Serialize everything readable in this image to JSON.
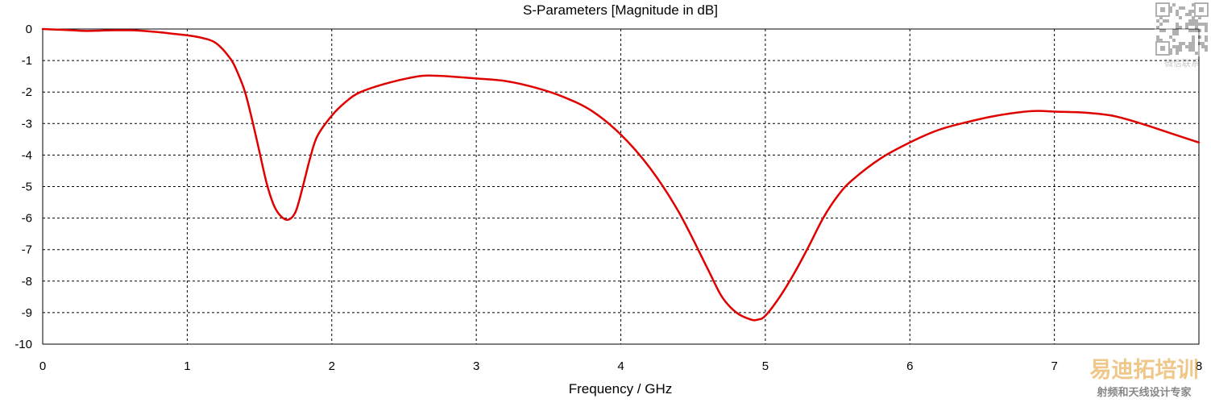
{
  "chart_data": {
    "type": "line",
    "title": "S-Parameters [Magnitude in dB]",
    "xlabel": "Frequency / GHz",
    "ylabel": "",
    "xlim": [
      0,
      8
    ],
    "ylim": [
      -10,
      0
    ],
    "x_ticks": [
      0,
      1,
      2,
      3,
      4,
      5,
      6,
      7,
      8
    ],
    "y_ticks": [
      0,
      -1,
      -2,
      -3,
      -4,
      -5,
      -6,
      -7,
      -8,
      -9,
      -10
    ],
    "grid": true,
    "legend": "none",
    "series": [
      {
        "color": "#e00000",
        "x": [
          0,
          0.1,
          0.2,
          0.3,
          0.4,
          0.5,
          0.6,
          0.7,
          0.8,
          0.9,
          1.0,
          1.1,
          1.2,
          1.3,
          1.35,
          1.4,
          1.45,
          1.5,
          1.55,
          1.6,
          1.65,
          1.7,
          1.75,
          1.8,
          1.85,
          1.9,
          2.0,
          2.1,
          2.2,
          2.4,
          2.6,
          2.7,
          2.8,
          3.0,
          3.2,
          3.4,
          3.6,
          3.8,
          4.0,
          4.2,
          4.4,
          4.6,
          4.7,
          4.8,
          4.9,
          4.95,
          5.0,
          5.1,
          5.2,
          5.3,
          5.4,
          5.5,
          5.6,
          5.8,
          6.0,
          6.2,
          6.4,
          6.6,
          6.8,
          6.9,
          7.0,
          7.2,
          7.4,
          7.6,
          7.8,
          8.0
        ],
        "y": [
          0,
          -0.02,
          -0.04,
          -0.06,
          -0.05,
          -0.04,
          -0.04,
          -0.06,
          -0.1,
          -0.15,
          -0.2,
          -0.28,
          -0.45,
          -0.95,
          -1.4,
          -2.0,
          -2.9,
          -3.9,
          -4.9,
          -5.6,
          -5.95,
          -6.05,
          -5.8,
          -5.0,
          -4.1,
          -3.4,
          -2.75,
          -2.3,
          -2.0,
          -1.7,
          -1.5,
          -1.48,
          -1.5,
          -1.57,
          -1.65,
          -1.85,
          -2.15,
          -2.6,
          -3.35,
          -4.4,
          -5.8,
          -7.6,
          -8.5,
          -9.0,
          -9.22,
          -9.22,
          -9.1,
          -8.5,
          -7.75,
          -6.9,
          -6.0,
          -5.3,
          -4.8,
          -4.1,
          -3.6,
          -3.2,
          -2.95,
          -2.75,
          -2.62,
          -2.6,
          -2.62,
          -2.65,
          -2.75,
          -3.0,
          -3.3,
          -3.6
        ]
      }
    ]
  },
  "watermark": {
    "qr_caption": "微信联系",
    "brand": "易迪拓培训",
    "tagline": "射频和天线设计专家",
    "brand_color": "#e6a23c"
  }
}
